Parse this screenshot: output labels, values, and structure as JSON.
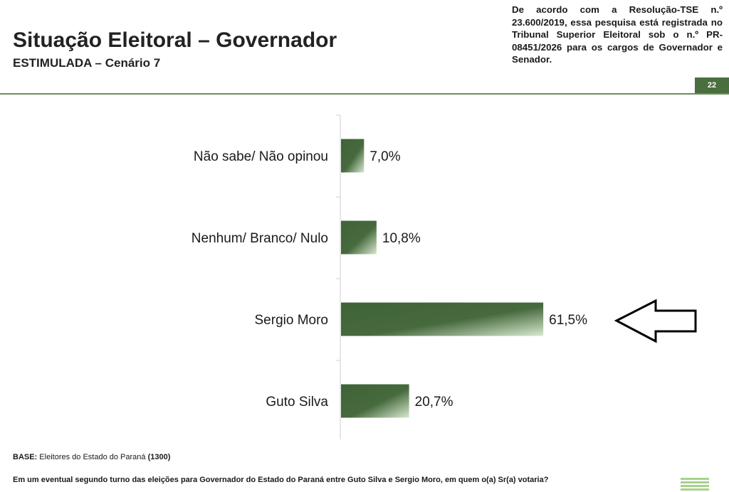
{
  "header": {
    "title": "Situação Eleitoral – Governador",
    "subtitle": "ESTIMULADA – Cenário 7",
    "registration_note": "De acordo com a Resolução-TSE n.º 23.600/2019, essa pesquisa está registrada no Tribunal Superior Eleitoral sob o n.º PR-08451/2026 para os cargos de Governador e Senador.",
    "page_number": "22"
  },
  "footer": {
    "base_label": "BASE:",
    "base_text": "Eleitores do Estado do Paraná",
    "base_count": "(1300)",
    "question": "Em um eventual segundo turno das eleições para Governador do Estado do Paraná entre Guto Silva e Sergio Moro, em quem o(a) Sr(a) votaria?"
  },
  "colors": {
    "bar_dark": "#3f6338",
    "bar_light": "#d8ead0",
    "accent_rule": "#6b8d5e"
  },
  "chart_data": {
    "type": "bar",
    "orientation": "horizontal",
    "categories": [
      "Não sabe/ Não opinou",
      "Nenhum/ Branco/ Nulo",
      "Sergio Moro",
      "Guto Silva"
    ],
    "values": [
      7.0,
      10.8,
      61.5,
      20.7
    ],
    "value_labels": [
      "7,0%",
      "10,8%",
      "61,5%",
      "20,7%"
    ],
    "highlight_category": "Sergio Moro",
    "grid": false
  }
}
